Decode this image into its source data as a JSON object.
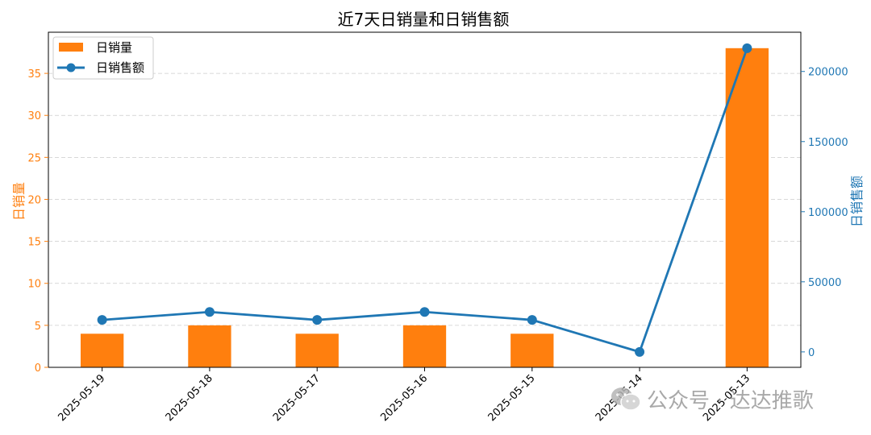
{
  "colors": {
    "bar": "#ff7f0e",
    "line": "#1f77b4",
    "grid": "#cccccc",
    "axis": "#000000"
  },
  "watermark": {
    "icon": "wechat-icon",
    "text": "公众号 · 达达推歌"
  },
  "chart_data": {
    "type": "bar+line",
    "title": "近7天日销量和日销售额",
    "categories": [
      "2025-05-19",
      "2025-05-18",
      "2025-05-17",
      "2025-05-16",
      "2025-05-15",
      "2025-05-14",
      "2025-05-13"
    ],
    "series": [
      {
        "name": "日销量",
        "type": "bar",
        "axis": "left",
        "values": [
          4,
          5,
          4,
          5,
          4,
          0,
          38
        ]
      },
      {
        "name": "日销售额",
        "type": "line",
        "axis": "right",
        "values": [
          22800,
          28500,
          22800,
          28500,
          22800,
          0,
          216600
        ]
      }
    ],
    "ylabel_left": "日销量",
    "ylabel_right": "日销售额",
    "ylim_left": [
      0,
      39.9
    ],
    "ylim_right": [
      -11000,
      228000
    ],
    "yticks_left": [
      0,
      5,
      10,
      15,
      20,
      25,
      30,
      35
    ],
    "yticks_right": [
      0,
      50000,
      100000,
      150000,
      200000
    ],
    "grid": "horizontal dashed",
    "legend": "top-left"
  }
}
